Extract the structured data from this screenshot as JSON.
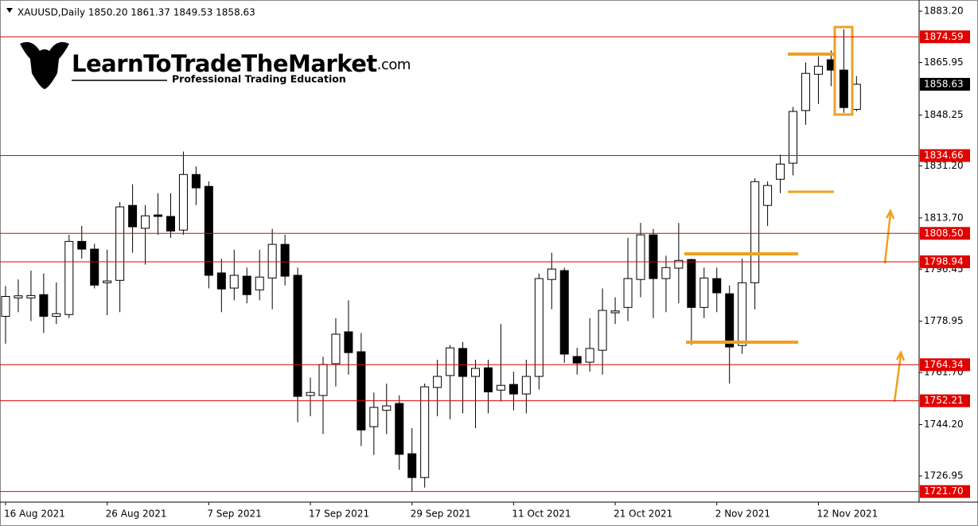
{
  "chart_data": {
    "type": "candlestick",
    "header": "XAUUSD,Daily  1850.20 1861.37 1849.53 1858.63",
    "brand": {
      "name": "LearnToTradeTheMarket",
      "suffix": ".com",
      "tagline": "Professional Trading Education"
    },
    "categories": [
      "16 Aug 2021",
      null,
      null,
      null,
      null,
      null,
      null,
      null,
      "26 Aug 2021",
      null,
      null,
      null,
      null,
      null,
      null,
      null,
      "7 Sep 2021",
      null,
      null,
      null,
      null,
      null,
      null,
      null,
      "17 Sep 2021",
      null,
      null,
      null,
      null,
      null,
      null,
      null,
      "29 Sep 2021",
      null,
      null,
      null,
      null,
      null,
      null,
      null,
      "11 Oct 2021",
      null,
      null,
      null,
      null,
      null,
      null,
      null,
      "21 Oct 2021",
      null,
      null,
      null,
      null,
      null,
      null,
      null,
      "2 Nov 2021",
      null,
      null,
      null,
      null,
      null,
      null,
      null,
      "12 Nov 2021",
      null,
      null,
      null
    ],
    "open": [
      1780.6,
      1786.8,
      1786.8,
      1787.9,
      1780.6,
      1781.2,
      1805.8,
      1803.2,
      1791.9,
      1792.7,
      1817.9,
      1810.2,
      1814.7,
      1814.2,
      1809.6,
      1828.3,
      1824.3,
      1795.2,
      1790.1,
      1794.1,
      1789.5,
      1793.5,
      1804.8,
      1794.4,
      1754.0,
      1754.0,
      1764.7,
      1775.4,
      1768.7,
      1743.5,
      1749.0,
      1751.3,
      1734.4,
      1726.4,
      1756.7,
      1760.7,
      1769.8,
      1760.4,
      1763.3,
      1755.8,
      1757.7,
      1754.5,
      1760.4,
      1793.0,
      1796.0,
      1767.1,
      1765.2,
      1769.2,
      1781.8,
      1783.6,
      1793.0,
      1808.0,
      1793.3,
      1796.8,
      1799.7,
      1783.6,
      1793.3,
      1788.2,
      1770.8,
      1791.9,
      1817.9,
      1826.7,
      1832.1,
      1849.8,
      1862.0,
      1866.9,
      1863.4,
      1850.2
    ],
    "high": [
      1790.8,
      1793,
      1796,
      1795,
      1792,
      1808,
      1811,
      1805,
      1803,
      1819,
      1825,
      1818,
      1822,
      1822,
      1836,
      1831,
      1826,
      1800,
      1803,
      1797,
      1803,
      1810,
      1808,
      1797,
      1760,
      1767,
      1780,
      1786,
      1775,
      1755,
      1758,
      1754,
      1743,
      1758,
      1766,
      1771,
      1772,
      1766,
      1766,
      1778,
      1762,
      1766,
      1795,
      1802,
      1797,
      1770,
      1780,
      1790,
      1787,
      1807,
      1812,
      1810,
      1801,
      1812,
      1800,
      1797,
      1797,
      1791,
      1800,
      1827,
      1826,
      1835,
      1851,
      1866,
      1868,
      1870,
      1877.1,
      1861.37
    ],
    "low": [
      1771.4,
      1782,
      1779,
      1775,
      1778,
      1780,
      1800,
      1790,
      1781,
      1782,
      1802,
      1798,
      1808,
      1807,
      1808,
      1818,
      1790,
      1782,
      1786,
      1785,
      1786,
      1783,
      1791,
      1745,
      1747,
      1741,
      1757,
      1761,
      1737,
      1734,
      1741,
      1729,
      1721.7,
      1723,
      1747,
      1746,
      1748,
      1743,
      1748,
      1752,
      1749,
      1748,
      1756,
      1783,
      1765,
      1761,
      1762,
      1761,
      1778,
      1779,
      1787,
      1780,
      1782,
      1785,
      1771,
      1780,
      1782,
      1758,
      1768,
      1783,
      1811,
      1822,
      1828,
      1845,
      1852,
      1858,
      1849,
      1849.53
    ],
    "close": [
      1787.3,
      1787.5,
      1787.6,
      1780.6,
      1781.5,
      1805.8,
      1803.2,
      1791.1,
      1792.5,
      1817.4,
      1810.7,
      1814.4,
      1814.2,
      1809.3,
      1828.3,
      1823.8,
      1794.4,
      1789.8,
      1794.4,
      1787.9,
      1793.8,
      1804.8,
      1794.1,
      1753.7,
      1755.0,
      1764.4,
      1774.6,
      1768.4,
      1742.4,
      1750.0,
      1750.5,
      1734.2,
      1726.4,
      1756.9,
      1760.4,
      1770.0,
      1760.4,
      1763.1,
      1755.2,
      1757.4,
      1754.5,
      1760.4,
      1793.3,
      1796.5,
      1767.9,
      1764.9,
      1769.8,
      1782.6,
      1782.4,
      1793.3,
      1808.0,
      1793.3,
      1797.0,
      1799.4,
      1783.6,
      1793.5,
      1788.5,
      1770.3,
      1791.9,
      1825.9,
      1824.6,
      1831.8,
      1849.5,
      1862.3,
      1864.7,
      1863.4,
      1850.8,
      1858.63
    ],
    "up_color": "#ffffff",
    "down_color": "#000000",
    "level_color": "#e00000",
    "ylim": [
      1718.4,
      1885.9
    ],
    "yticks": [
      {
        "value": 1883.2,
        "label": "1883.20"
      },
      {
        "value": 1865.95,
        "label": "1865.95"
      },
      {
        "value": 1848.25,
        "label": "1848.25"
      },
      {
        "value": 1831.2,
        "label": "1831.20"
      },
      {
        "value": 1813.7,
        "label": "1813.70"
      },
      {
        "value": 1796.45,
        "label": "1796.45"
      },
      {
        "value": 1778.95,
        "label": "1778.95"
      },
      {
        "value": 1761.7,
        "label": "1761.70"
      },
      {
        "value": 1744.2,
        "label": "1744.20"
      },
      {
        "value": 1726.95,
        "label": "1726.95"
      }
    ],
    "levels": [
      {
        "value": 1874.59,
        "label": "1874.59"
      },
      {
        "value": 1834.66,
        "label": "1834.66"
      },
      {
        "value": 1808.5,
        "label": "1808.50"
      },
      {
        "value": 1798.94,
        "label": "1798.94"
      },
      {
        "value": 1764.34,
        "label": "1764.34"
      },
      {
        "value": 1752.21,
        "label": "1752.21"
      },
      {
        "value": 1721.7,
        "label": "1721.70"
      }
    ],
    "current_price": {
      "value": 1858.63,
      "label": "1858.63"
    }
  }
}
